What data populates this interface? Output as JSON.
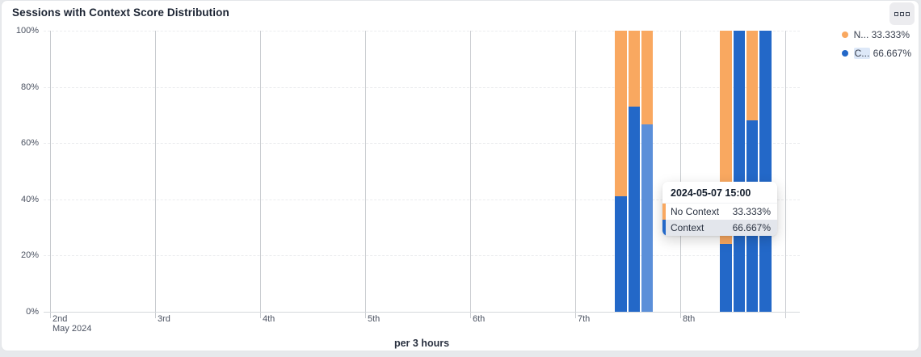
{
  "card": {
    "title": "Sessions with Context Score Distribution"
  },
  "header_menu": {
    "icon": "three-squares-menu-icon"
  },
  "legend": {
    "items": [
      {
        "label": "N...",
        "value": "33.333%",
        "color": "#f9a860",
        "highlighted": false
      },
      {
        "label": "C...",
        "value": "66.667%",
        "color": "#2368c8",
        "highlighted": true
      }
    ]
  },
  "tooltip": {
    "title": "2024-05-07 15:00",
    "rows": [
      {
        "label": "No Context",
        "value": "33.333%",
        "color": "#f9a860",
        "highlighted": false
      },
      {
        "label": "Context",
        "value": "66.667%",
        "color": "#2368c8",
        "highlighted": true
      }
    ]
  },
  "chart_data": {
    "type": "bar",
    "stacked": true,
    "unit": "percent",
    "title": "Sessions with Context Score Distribution",
    "xlabel": "per 3 hours",
    "x_axis": {
      "month_label": "May 2024",
      "ticks": [
        "2nd",
        "3rd",
        "4th",
        "5th",
        "6th",
        "7th",
        "8th",
        ""
      ]
    },
    "y_axis": {
      "ticks": [
        "0%",
        "20%",
        "40%",
        "60%",
        "80%",
        "100%"
      ],
      "range": [
        0,
        100
      ]
    },
    "series": [
      {
        "name": "Context",
        "color": "#2368c8"
      },
      {
        "name": "No Context",
        "color": "#f9a860"
      }
    ],
    "highlight_color": "#5b8fd9",
    "bars": [
      {
        "date": "2024-05-07",
        "time": "09:00",
        "context": 41,
        "no_context": 59,
        "highlighted": false
      },
      {
        "date": "2024-05-07",
        "time": "12:00",
        "context": 73,
        "no_context": 27,
        "highlighted": false
      },
      {
        "date": "2024-05-07",
        "time": "15:00",
        "context": 66.667,
        "no_context": 33.333,
        "highlighted": true
      },
      {
        "date": "2024-05-08",
        "time": "09:00",
        "context": 24,
        "no_context": 76,
        "highlighted": false
      },
      {
        "date": "2024-05-08",
        "time": "12:00",
        "context": 100,
        "no_context": 0,
        "highlighted": false
      },
      {
        "date": "2024-05-08",
        "time": "15:00",
        "context": 68,
        "no_context": 32,
        "highlighted": false
      },
      {
        "date": "2024-05-08",
        "time": "18:00",
        "context": 100,
        "no_context": 0,
        "highlighted": false
      }
    ]
  }
}
